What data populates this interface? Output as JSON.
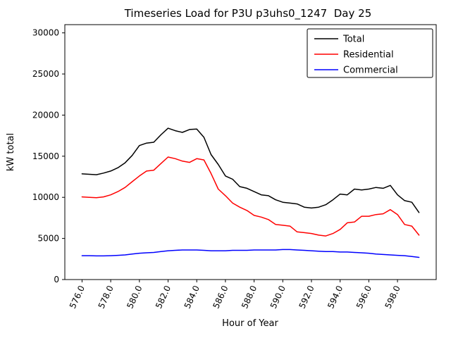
{
  "chart_data": {
    "type": "line",
    "title": "Timeseries Load for P3U p3uhs0_1247  Day 25",
    "xlabel": "Hour of Year",
    "ylabel": "kW total",
    "xlim": [
      574.8,
      600.7
    ],
    "ylim": [
      0,
      31000
    ],
    "xticks": [
      576,
      578,
      580,
      582,
      584,
      586,
      588,
      590,
      592,
      594,
      596,
      598
    ],
    "xtick_labels": [
      "576.0",
      "578.0",
      "580.0",
      "582.0",
      "584.0",
      "586.0",
      "588.0",
      "590.0",
      "592.0",
      "594.0",
      "596.0",
      "598.0"
    ],
    "yticks": [
      0,
      5000,
      10000,
      15000,
      20000,
      25000,
      30000
    ],
    "grid": false,
    "legend_position": "upper right",
    "x": [
      576.0,
      576.5,
      577.0,
      577.5,
      578.0,
      578.5,
      579.0,
      579.5,
      580.0,
      580.5,
      581.0,
      581.5,
      582.0,
      582.5,
      583.0,
      583.5,
      584.0,
      584.5,
      585.0,
      585.5,
      586.0,
      586.5,
      587.0,
      587.5,
      588.0,
      588.5,
      589.0,
      589.5,
      590.0,
      590.5,
      591.0,
      591.5,
      592.0,
      592.5,
      593.0,
      593.5,
      594.0,
      594.5,
      595.0,
      595.5,
      596.0,
      596.5,
      597.0,
      597.5,
      598.0,
      598.5,
      599.0,
      599.5
    ],
    "series": [
      {
        "name": "Total",
        "color": "#000000",
        "values": [
          12850,
          12800,
          12750,
          12950,
          13200,
          13600,
          14200,
          15100,
          16300,
          16600,
          16700,
          17600,
          18400,
          18100,
          17900,
          18250,
          18300,
          17300,
          15200,
          14000,
          12600,
          12200,
          11300,
          11100,
          10700,
          10300,
          10200,
          9700,
          9400,
          9300,
          9200,
          8800,
          8700,
          8800,
          9100,
          9700,
          10400,
          10300,
          11000,
          10900,
          11000,
          11200,
          11100,
          11450,
          10300,
          9600,
          9400,
          8150
        ]
      },
      {
        "name": "Residential",
        "color": "#ff0000",
        "values": [
          10050,
          10000,
          9950,
          10050,
          10300,
          10700,
          11200,
          11900,
          12600,
          13200,
          13300,
          14100,
          14900,
          14700,
          14400,
          14250,
          14700,
          14550,
          12900,
          11000,
          10200,
          9300,
          8800,
          8400,
          7800,
          7600,
          7300,
          6700,
          6600,
          6500,
          5800,
          5700,
          5600,
          5400,
          5300,
          5600,
          6100,
          6900,
          7000,
          7700,
          7700,
          7900,
          8000,
          8500,
          7900,
          6700,
          6500,
          5400
        ]
      },
      {
        "name": "Commercial",
        "color": "#0000ff",
        "values": [
          2900,
          2900,
          2880,
          2880,
          2900,
          2950,
          3000,
          3100,
          3200,
          3250,
          3300,
          3400,
          3500,
          3550,
          3600,
          3600,
          3600,
          3550,
          3500,
          3500,
          3500,
          3550,
          3550,
          3550,
          3600,
          3600,
          3600,
          3600,
          3650,
          3650,
          3600,
          3550,
          3500,
          3450,
          3400,
          3400,
          3350,
          3350,
          3300,
          3250,
          3200,
          3100,
          3050,
          3000,
          2950,
          2900,
          2800,
          2700
        ]
      }
    ]
  }
}
